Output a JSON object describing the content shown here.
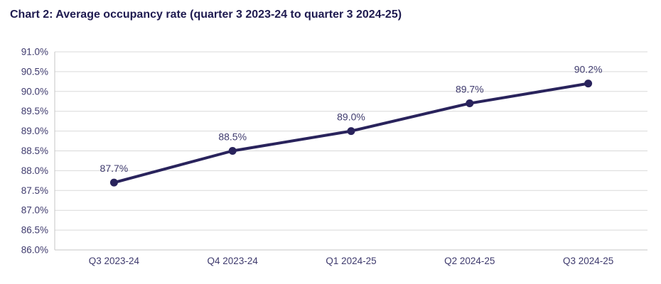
{
  "title": "Chart 2: Average occupancy rate (quarter 3 2023-24 to quarter 3 2024-25)",
  "chart_data": {
    "type": "line",
    "title": "Chart 2: Average occupancy rate (quarter 3 2023-24 to quarter 3 2024-25)",
    "categories": [
      "Q3 2023-24",
      "Q4 2023-24",
      "Q1 2024-25",
      "Q2 2024-25",
      "Q3 2024-25"
    ],
    "values": [
      87.7,
      88.5,
      89.0,
      89.7,
      90.2
    ],
    "point_labels": [
      "87.7%",
      "88.5%",
      "89.0%",
      "89.7%",
      "90.2%"
    ],
    "ylim": [
      86.0,
      91.0
    ],
    "ytick_values": [
      86.0,
      86.5,
      87.0,
      87.5,
      88.0,
      88.5,
      89.0,
      89.5,
      90.0,
      90.5,
      91.0
    ],
    "ytick_labels": [
      "86.0%",
      "86.5%",
      "87.0%",
      "87.5%",
      "88.0%",
      "88.5%",
      "89.0%",
      "89.5%",
      "90.0%",
      "90.5%",
      "91.0%"
    ],
    "xlabel": "",
    "ylabel": "",
    "grid": true,
    "legend": "none",
    "colors": {
      "line": "#29235C",
      "marker": "#29235C",
      "data_label": "#3E3A6D",
      "tick_label": "#3E3A6D",
      "title": "#1F1B50",
      "gridline": "#D9D9D9",
      "axis": "#C6C6C6",
      "background": "#FFFFFF"
    }
  }
}
